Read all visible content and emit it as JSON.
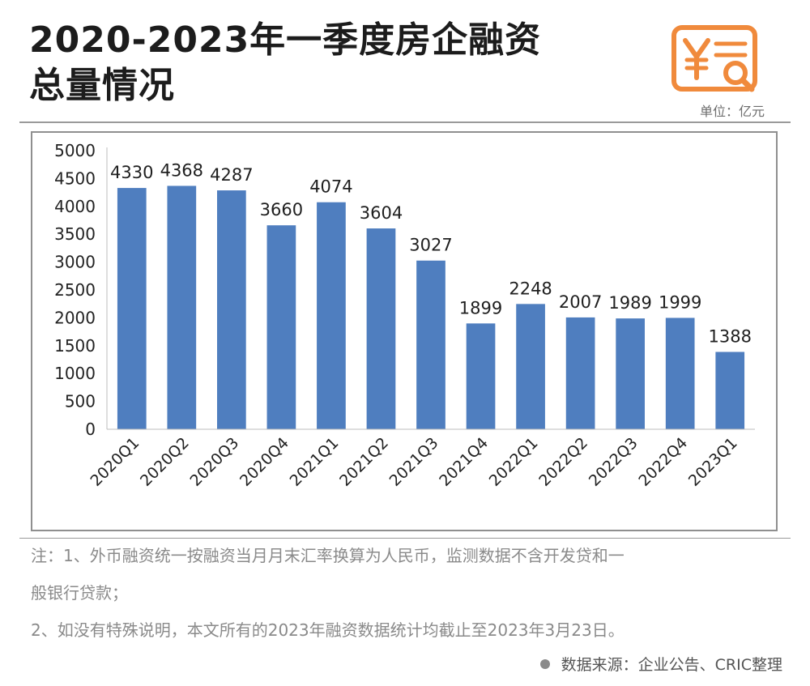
{
  "header": {
    "title_line1": "2020-2023年一季度房企融资",
    "title_line2": "总量情况",
    "unit": "单位：亿元"
  },
  "icon": {
    "name": "finance-document-search-icon",
    "color": "#F08A3C"
  },
  "chart_data": {
    "type": "bar",
    "categories": [
      "2020Q1",
      "2020Q2",
      "2020Q3",
      "2020Q4",
      "2021Q1",
      "2021Q2",
      "2021Q3",
      "2021Q4",
      "2022Q1",
      "2022Q2",
      "2022Q3",
      "2022Q4",
      "2023Q1"
    ],
    "values": [
      4330,
      4368,
      4287,
      3660,
      4074,
      3604,
      3027,
      1899,
      2248,
      2007,
      1989,
      1999,
      1388
    ],
    "yticks": [
      0,
      500,
      1000,
      1500,
      2000,
      2500,
      3000,
      3500,
      4000,
      4500,
      5000
    ],
    "ylim": [
      0,
      5000
    ],
    "bar_color": "#4F7EBF",
    "grid": false,
    "legend": "none"
  },
  "notes": {
    "line1": "注：1、外币融资统一按融资当月月末汇率换算为人民币，监测数据不含开发贷和一",
    "line2": "般银行贷款；",
    "line3": "2、如没有特殊说明，本文所有的2023年融资数据统计均截止至2023年3月23日。"
  },
  "source": "数据来源：企业公告、CRIC整理"
}
